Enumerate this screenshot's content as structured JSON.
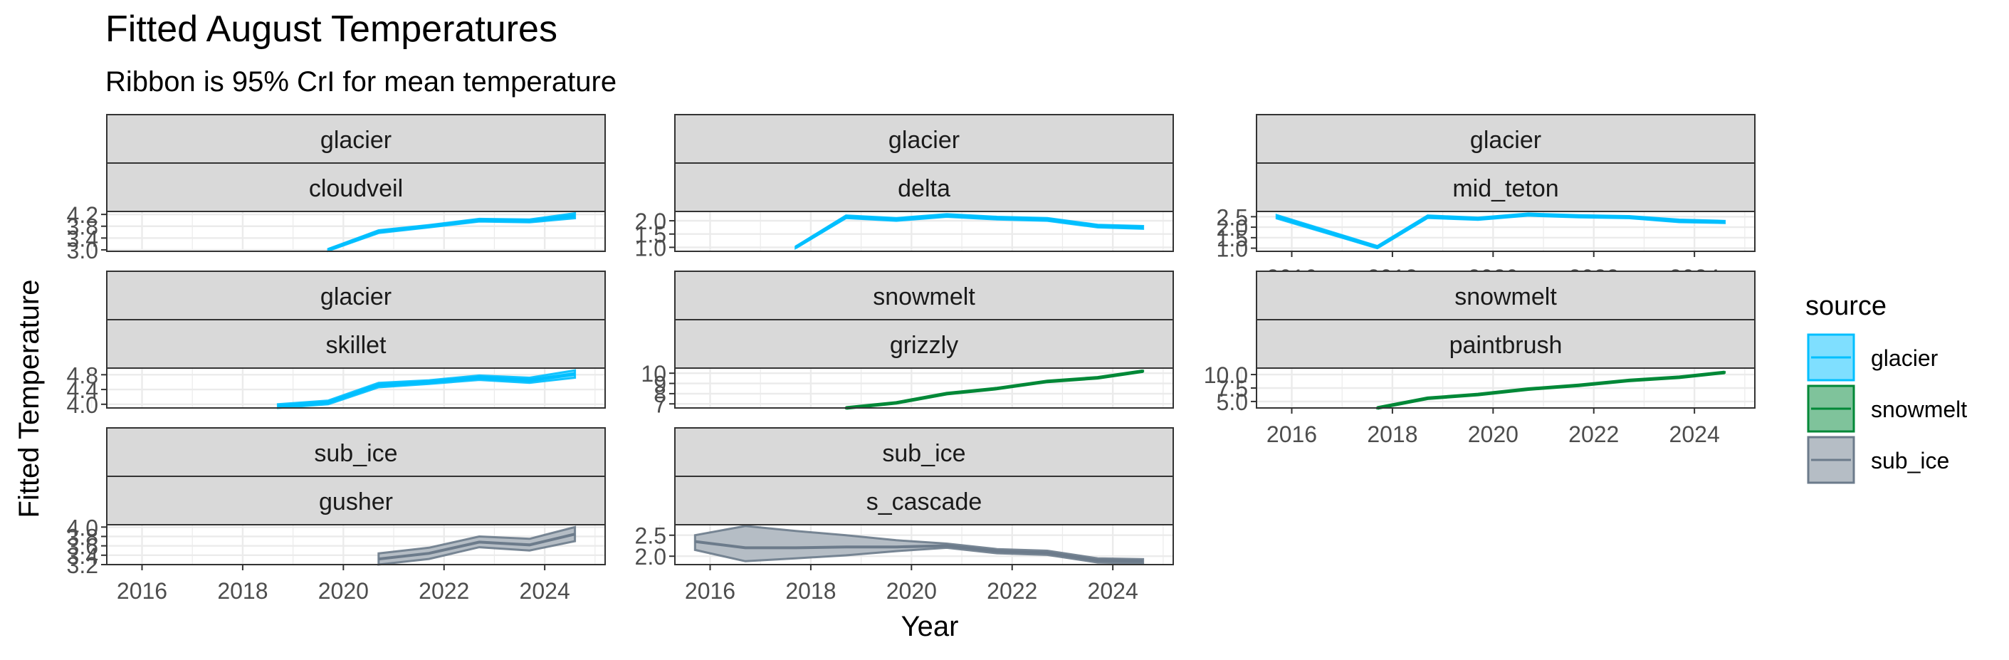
{
  "chart_data": {
    "type": "line",
    "title": "Fitted August Temperatures",
    "subtitle": "Ribbon is 95% CrI for mean temperature",
    "xlabel": "Year",
    "ylabel": "Fitted Temperature",
    "x_ticks": [
      2016,
      2018,
      2020,
      2022,
      2024
    ],
    "xlim": [
      2015.3,
      2025.2
    ],
    "legend": {
      "title": "source",
      "position": "right",
      "items": [
        {
          "label": "glacier",
          "color": "#00BFFF",
          "fill": "#7FDFFF"
        },
        {
          "label": "snowmelt",
          "color": "#008837",
          "fill": "#7FC39B"
        },
        {
          "label": "sub_ice",
          "color": "#6C7B8B",
          "fill": "#B5BDC5"
        }
      ]
    },
    "panels": [
      {
        "source": "glacier",
        "site": "cloudveil",
        "ylim": [
          2.95,
          4.3
        ],
        "y_ticks": [
          "3.0",
          "3.4",
          "3.8",
          "4.2"
        ],
        "y_tick_values": [
          3.0,
          3.4,
          3.8,
          4.2
        ],
        "show_x_axis": false,
        "x": [
          2019.7,
          2020.7,
          2021.7,
          2022.7,
          2023.7,
          2024.6
        ],
        "mean": [
          3.0,
          3.62,
          3.8,
          4.0,
          3.98,
          4.15
        ],
        "lower": [
          2.97,
          3.57,
          3.76,
          3.96,
          3.93,
          4.07
        ],
        "upper": [
          3.03,
          3.66,
          3.84,
          4.05,
          4.03,
          4.24
        ]
      },
      {
        "source": "glacier",
        "site": "delta",
        "ylim": [
          0.85,
          2.35
        ],
        "y_ticks": [
          "1.0",
          "1.5",
          "2.0"
        ],
        "y_tick_values": [
          1.0,
          1.5,
          2.0
        ],
        "show_x_axis": false,
        "x": [
          2017.7,
          2018.7,
          2019.7,
          2020.7,
          2021.7,
          2022.7,
          2023.7,
          2024.6
        ],
        "mean": [
          1.0,
          2.15,
          2.05,
          2.2,
          2.1,
          2.05,
          1.8,
          1.75
        ],
        "lower": [
          0.97,
          2.1,
          2.0,
          2.15,
          2.05,
          2.0,
          1.75,
          1.7
        ],
        "upper": [
          1.03,
          2.2,
          2.1,
          2.25,
          2.15,
          2.1,
          1.85,
          1.8
        ]
      },
      {
        "source": "glacier",
        "site": "mid_teton",
        "ylim": [
          0.85,
          2.75
        ],
        "y_ticks": [
          "1.0",
          "1.5",
          "2.0",
          "2.5"
        ],
        "y_tick_values": [
          1.0,
          1.5,
          2.0,
          2.5
        ],
        "show_x_axis": true,
        "x": [
          2015.7,
          2017.7,
          2018.7,
          2019.7,
          2020.7,
          2021.7,
          2022.7,
          2023.7,
          2024.6
        ],
        "mean": [
          2.5,
          1.05,
          2.5,
          2.4,
          2.6,
          2.52,
          2.48,
          2.3,
          2.25
        ],
        "lower": [
          2.42,
          1.0,
          2.44,
          2.35,
          2.55,
          2.47,
          2.43,
          2.24,
          2.2
        ],
        "upper": [
          2.58,
          1.1,
          2.56,
          2.45,
          2.65,
          2.57,
          2.53,
          2.36,
          2.3
        ]
      },
      {
        "source": "glacier",
        "site": "skillet",
        "ylim": [
          3.9,
          4.98
        ],
        "y_ticks": [
          "4.0",
          "4.4",
          "4.8"
        ],
        "y_tick_values": [
          4.0,
          4.4,
          4.8
        ],
        "show_x_axis": false,
        "x": [
          2018.7,
          2019.7,
          2020.7,
          2021.7,
          2022.7,
          2023.7,
          2024.6
        ],
        "mean": [
          3.95,
          4.05,
          4.52,
          4.6,
          4.72,
          4.65,
          4.82
        ],
        "lower": [
          3.9,
          4.0,
          4.46,
          4.55,
          4.66,
          4.58,
          4.72
        ],
        "upper": [
          4.0,
          4.1,
          4.58,
          4.65,
          4.78,
          4.72,
          4.92
        ]
      },
      {
        "source": "snowmelt",
        "site": "grizzly",
        "ylim": [
          6.6,
          10.5
        ],
        "y_ticks": [
          "7",
          "8",
          "9",
          "10"
        ],
        "y_tick_values": [
          7,
          8,
          9,
          10
        ],
        "show_x_axis": false,
        "x": [
          2018.7,
          2019.7,
          2020.7,
          2021.7,
          2022.7,
          2023.7,
          2024.6
        ],
        "mean": [
          6.6,
          7.1,
          8.0,
          8.5,
          9.2,
          9.55,
          10.2
        ],
        "lower": [
          6.57,
          7.07,
          7.97,
          8.47,
          9.17,
          9.52,
          10.17
        ],
        "upper": [
          6.63,
          7.13,
          8.03,
          8.53,
          9.23,
          9.58,
          10.23
        ]
      },
      {
        "source": "snowmelt",
        "site": "paintbrush",
        "ylim": [
          3.8,
          11.2
        ],
        "y_ticks": [
          "5.0",
          "7.5",
          "10.0"
        ],
        "y_tick_values": [
          5.0,
          7.5,
          10.0
        ],
        "show_x_axis": true,
        "x": [
          2017.7,
          2018.7,
          2019.7,
          2020.7,
          2021.7,
          2022.7,
          2023.7,
          2024.6
        ],
        "mean": [
          3.8,
          5.6,
          6.3,
          7.3,
          8.0,
          8.9,
          9.5,
          10.4
        ],
        "lower": [
          3.75,
          5.55,
          6.25,
          7.25,
          7.95,
          8.85,
          9.45,
          10.35
        ],
        "upper": [
          3.85,
          5.65,
          6.35,
          7.35,
          8.05,
          8.95,
          9.55,
          10.45
        ]
      },
      {
        "source": "sub_ice",
        "site": "gusher",
        "ylim": [
          3.2,
          4.05
        ],
        "y_ticks": [
          "3.2",
          "3.4",
          "3.6",
          "3.8",
          "4.0"
        ],
        "y_tick_values": [
          3.2,
          3.4,
          3.6,
          3.8,
          4.0
        ],
        "show_x_axis": true,
        "x": [
          2020.7,
          2021.7,
          2022.7,
          2023.7,
          2024.6
        ],
        "mean": [
          3.32,
          3.44,
          3.68,
          3.62,
          3.85
        ],
        "lower": [
          3.2,
          3.32,
          3.57,
          3.5,
          3.7
        ],
        "upper": [
          3.44,
          3.56,
          3.8,
          3.75,
          4.0
        ]
      },
      {
        "source": "sub_ice",
        "site": "s_cascade",
        "ylim": [
          1.8,
          2.75
        ],
        "y_ticks": [
          "2.0",
          "2.5"
        ],
        "y_tick_values": [
          2.0,
          2.5
        ],
        "show_x_axis": true,
        "x": [
          2015.7,
          2016.7,
          2017.7,
          2018.7,
          2019.7,
          2020.7,
          2021.7,
          2022.7,
          2023.7,
          2024.6
        ],
        "mean": [
          2.35,
          2.2,
          2.2,
          2.22,
          2.22,
          2.25,
          2.12,
          2.08,
          1.9,
          1.88
        ],
        "lower": [
          2.15,
          1.88,
          1.95,
          2.02,
          2.12,
          2.2,
          2.07,
          2.03,
          1.85,
          1.83
        ],
        "upper": [
          2.5,
          2.72,
          2.6,
          2.5,
          2.38,
          2.3,
          2.17,
          2.13,
          1.95,
          1.93
        ]
      }
    ]
  }
}
